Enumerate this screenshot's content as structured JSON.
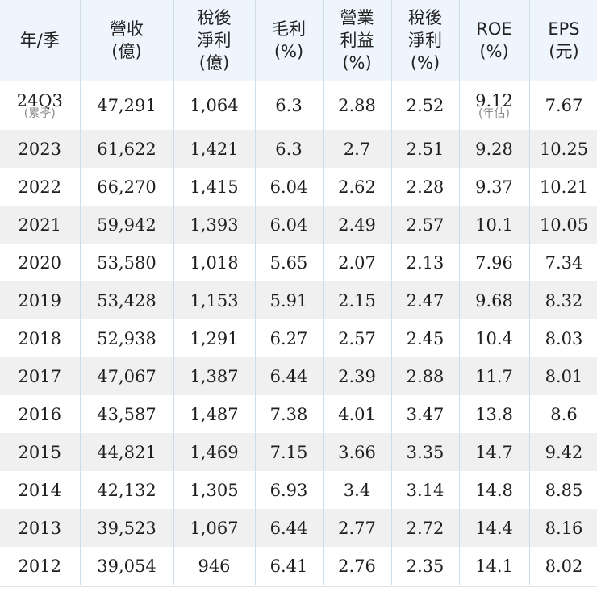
{
  "headers": [
    {
      "line1": "年/季",
      "line2": ""
    },
    {
      "line1": "營收",
      "line2": "(億)"
    },
    {
      "line1": "稅後",
      "line2": "淨利",
      "line3": "(億)"
    },
    {
      "line1": "毛利",
      "line2": "(%)"
    },
    {
      "line1": "營業",
      "line2": "利益",
      "line3": "(%)"
    },
    {
      "line1": "稅後",
      "line2": "淨利",
      "line3": "(%)"
    },
    {
      "line1": "ROE",
      "line2": "(%)"
    },
    {
      "line1": "EPS",
      "line2": "(元)"
    }
  ],
  "rows": [
    {
      "year": "24Q3",
      "year_note": "(累季)",
      "revenue": "47,291",
      "net_income": "1,064",
      "gross_margin": "6.3",
      "operating_margin": "2.88",
      "net_margin": "2.52",
      "roe": "9.12",
      "roe_note": "(年估)",
      "eps": "7.67"
    },
    {
      "year": "2023",
      "revenue": "61,622",
      "net_income": "1,421",
      "gross_margin": "6.3",
      "operating_margin": "2.7",
      "net_margin": "2.51",
      "roe": "9.28",
      "eps": "10.25"
    },
    {
      "year": "2022",
      "revenue": "66,270",
      "net_income": "1,415",
      "gross_margin": "6.04",
      "operating_margin": "2.62",
      "net_margin": "2.28",
      "roe": "9.37",
      "eps": "10.21"
    },
    {
      "year": "2021",
      "revenue": "59,942",
      "net_income": "1,393",
      "gross_margin": "6.04",
      "operating_margin": "2.49",
      "net_margin": "2.57",
      "roe": "10.1",
      "eps": "10.05"
    },
    {
      "year": "2020",
      "revenue": "53,580",
      "net_income": "1,018",
      "gross_margin": "5.65",
      "operating_margin": "2.07",
      "net_margin": "2.13",
      "roe": "7.96",
      "eps": "7.34"
    },
    {
      "year": "2019",
      "revenue": "53,428",
      "net_income": "1,153",
      "gross_margin": "5.91",
      "operating_margin": "2.15",
      "net_margin": "2.47",
      "roe": "9.68",
      "eps": "8.32"
    },
    {
      "year": "2018",
      "revenue": "52,938",
      "net_income": "1,291",
      "gross_margin": "6.27",
      "operating_margin": "2.57",
      "net_margin": "2.45",
      "roe": "10.4",
      "eps": "8.03"
    },
    {
      "year": "2017",
      "revenue": "47,067",
      "net_income": "1,387",
      "gross_margin": "6.44",
      "operating_margin": "2.39",
      "net_margin": "2.88",
      "roe": "11.7",
      "eps": "8.01"
    },
    {
      "year": "2016",
      "revenue": "43,587",
      "net_income": "1,487",
      "gross_margin": "7.38",
      "operating_margin": "4.01",
      "net_margin": "3.47",
      "roe": "13.8",
      "eps": "8.6"
    },
    {
      "year": "2015",
      "revenue": "44,821",
      "net_income": "1,469",
      "gross_margin": "7.15",
      "operating_margin": "3.66",
      "net_margin": "3.35",
      "roe": "14.7",
      "eps": "9.42"
    },
    {
      "year": "2014",
      "revenue": "42,132",
      "net_income": "1,305",
      "gross_margin": "6.93",
      "operating_margin": "3.4",
      "net_margin": "3.14",
      "roe": "14.8",
      "eps": "8.85"
    },
    {
      "year": "2013",
      "revenue": "39,523",
      "net_income": "1,067",
      "gross_margin": "6.44",
      "operating_margin": "2.77",
      "net_margin": "2.72",
      "roe": "14.4",
      "eps": "8.16"
    },
    {
      "year": "2012",
      "revenue": "39,054",
      "net_income": "946",
      "gross_margin": "6.41",
      "operating_margin": "2.76",
      "net_margin": "2.35",
      "roe": "14.1",
      "eps": "8.02"
    }
  ],
  "colors": {
    "header_bg": "#eef5fd",
    "stripe_bg": "#f0f0f1",
    "grid_line": "#cfdcea",
    "note_text": "#8a8a8a"
  }
}
